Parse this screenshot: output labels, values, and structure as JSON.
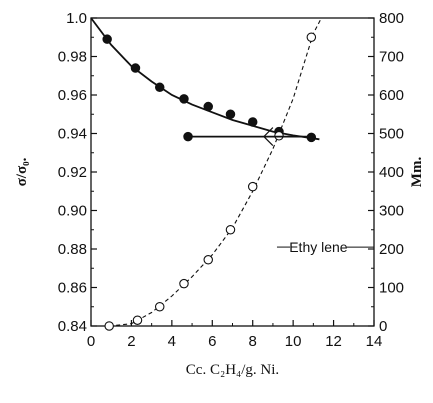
{
  "chart_data": {
    "type": "scatter",
    "xlabel": "Cc. C₂H₄/g. Ni.",
    "ylabel_left": "σ/σ₀.",
    "ylabel_right": "Mm.",
    "xlim": [
      0,
      14
    ],
    "ylim_left": [
      0.84,
      1.0
    ],
    "ylim_right": [
      0,
      800
    ],
    "x_ticks": [
      "0",
      "2",
      "4",
      "6",
      "8",
      "10",
      "12",
      "14"
    ],
    "y_left_ticks": [
      "1.0",
      "0.98",
      "0.96",
      "0.94",
      "0.92",
      "0.90",
      "0.88",
      "0.86",
      "0.84"
    ],
    "y_right_ticks": [
      "800",
      "700",
      "600",
      "500",
      "400",
      "300",
      "200",
      "100",
      "0"
    ],
    "grid": false,
    "series": [
      {
        "axis": "left",
        "marker": "filled-circle",
        "line": "solid",
        "points": [
          [
            0.8,
            0.989
          ],
          [
            2.2,
            0.974
          ],
          [
            3.4,
            0.964
          ],
          [
            4.6,
            0.958
          ],
          [
            5.8,
            0.954
          ],
          [
            6.9,
            0.95
          ],
          [
            8.0,
            0.946
          ],
          [
            9.3,
            0.941
          ],
          [
            10.9,
            0.938
          ]
        ],
        "curve": [
          [
            0,
            1.0
          ],
          [
            1,
            0.986
          ],
          [
            2,
            0.975
          ],
          [
            3,
            0.967
          ],
          [
            4,
            0.96
          ],
          [
            5,
            0.955
          ],
          [
            6,
            0.951
          ],
          [
            7,
            0.947
          ],
          [
            8,
            0.944
          ],
          [
            9,
            0.941
          ],
          [
            10,
            0.939
          ],
          [
            11.3,
            0.937
          ]
        ]
      },
      {
        "axis": "right",
        "name": "Ethylene",
        "marker": "open-circle",
        "line": "dashed",
        "points": [
          [
            0.9,
            0
          ],
          [
            2.3,
            15
          ],
          [
            3.4,
            50
          ],
          [
            4.6,
            110
          ],
          [
            5.8,
            172
          ],
          [
            6.9,
            250
          ],
          [
            8.0,
            362
          ],
          [
            9.3,
            494
          ],
          [
            10.9,
            750
          ]
        ],
        "curve": [
          [
            0.9,
            0
          ],
          [
            2,
            6
          ],
          [
            3,
            35
          ],
          [
            4,
            78
          ],
          [
            5,
            128
          ],
          [
            6,
            185
          ],
          [
            7,
            255
          ],
          [
            8,
            350
          ],
          [
            9,
            460
          ],
          [
            10,
            590
          ],
          [
            11,
            760
          ],
          [
            11.4,
            800
          ]
        ]
      },
      {
        "axis": "right",
        "marker": "filled-circle",
        "line": "solid",
        "points": [
          [
            4.8,
            492
          ]
        ],
        "curve": [
          [
            4.8,
            492
          ],
          [
            11.0,
            492
          ]
        ]
      }
    ],
    "annotations": [
      {
        "text": "Ethy lene"
      }
    ]
  },
  "colors": {
    "ink": "#111111",
    "background": "#ffffff"
  }
}
